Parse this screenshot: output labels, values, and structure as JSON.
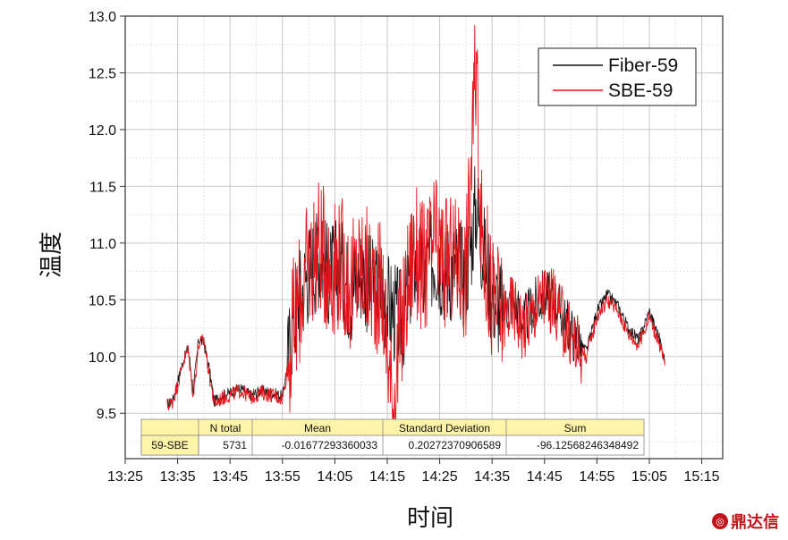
{
  "chart_data": {
    "type": "line",
    "xlabel": "时间",
    "ylabel": "温度",
    "x_ticks": [
      "13:25",
      "13:35",
      "13:45",
      "13:55",
      "14:05",
      "14:15",
      "14:25",
      "14:35",
      "14:45",
      "14:55",
      "15:05",
      "15:15"
    ],
    "xlim": [
      "13:25",
      "15:19"
    ],
    "ylim": [
      9.1,
      13.0
    ],
    "y_ticks": [
      "9.5",
      "10.0",
      "10.5",
      "11.0",
      "11.5",
      "12.0",
      "12.5",
      "13.0"
    ],
    "grid": true,
    "legend_position": "top-right",
    "series": [
      {
        "name": "Fiber-59",
        "color": "#111111",
        "points": [
          [
            "13:33",
            9.58
          ],
          [
            "13:34",
            9.6
          ],
          [
            "13:35",
            9.78
          ],
          [
            "13:36",
            9.95
          ],
          [
            "13:37",
            10.08
          ],
          [
            "13:38",
            9.7
          ],
          [
            "13:39",
            10.15
          ],
          [
            "13:40",
            10.12
          ],
          [
            "13:41",
            9.9
          ],
          [
            "13:42",
            9.6
          ],
          [
            "13:43",
            9.65
          ],
          [
            "13:45",
            9.68
          ],
          [
            "13:47",
            9.72
          ],
          [
            "13:49",
            9.66
          ],
          [
            "13:51",
            9.7
          ],
          [
            "13:53",
            9.68
          ],
          [
            "13:55",
            9.65
          ],
          [
            "13:56",
            9.95
          ],
          [
            "13:57",
            10.3
          ],
          [
            "13:58",
            10.5
          ],
          [
            "14:00",
            10.75
          ],
          [
            "14:02",
            10.9
          ],
          [
            "14:04",
            10.7
          ],
          [
            "14:06",
            10.8
          ],
          [
            "14:08",
            10.55
          ],
          [
            "14:10",
            10.75
          ],
          [
            "14:12",
            10.6
          ],
          [
            "14:14",
            10.55
          ],
          [
            "14:16",
            10.4
          ],
          [
            "14:18",
            10.3
          ],
          [
            "14:20",
            10.85
          ],
          [
            "14:22",
            10.7
          ],
          [
            "14:24",
            10.9
          ],
          [
            "14:26",
            10.75
          ],
          [
            "14:28",
            10.8
          ],
          [
            "14:30",
            10.7
          ],
          [
            "14:32",
            11.35
          ],
          [
            "14:33",
            11.0
          ],
          [
            "14:35",
            10.55
          ],
          [
            "14:37",
            10.4
          ],
          [
            "14:39",
            10.5
          ],
          [
            "14:41",
            10.3
          ],
          [
            "14:43",
            10.45
          ],
          [
            "14:45",
            10.55
          ],
          [
            "14:47",
            10.5
          ],
          [
            "14:49",
            10.3
          ],
          [
            "14:51",
            10.15
          ],
          [
            "14:53",
            10.05
          ],
          [
            "14:55",
            10.4
          ],
          [
            "14:57",
            10.55
          ],
          [
            "14:59",
            10.45
          ],
          [
            "15:01",
            10.25
          ],
          [
            "15:03",
            10.15
          ],
          [
            "15:05",
            10.4
          ],
          [
            "15:07",
            10.15
          ],
          [
            "15:08",
            9.95
          ]
        ]
      },
      {
        "name": "SBE-59",
        "color": "#e8141b",
        "points": [
          [
            "13:33",
            9.57
          ],
          [
            "13:34",
            9.6
          ],
          [
            "13:35",
            9.75
          ],
          [
            "13:36",
            9.95
          ],
          [
            "13:37",
            10.05
          ],
          [
            "13:38",
            9.65
          ],
          [
            "13:39",
            10.1
          ],
          [
            "13:40",
            10.15
          ],
          [
            "13:41",
            9.85
          ],
          [
            "13:42",
            9.58
          ],
          [
            "13:43",
            9.62
          ],
          [
            "13:45",
            9.66
          ],
          [
            "13:47",
            9.7
          ],
          [
            "13:49",
            9.64
          ],
          [
            "13:51",
            9.68
          ],
          [
            "13:53",
            9.66
          ],
          [
            "13:55",
            9.63
          ],
          [
            "13:56",
            9.9
          ],
          [
            "13:57",
            10.25
          ],
          [
            "13:58",
            10.45
          ],
          [
            "14:00",
            10.8
          ],
          [
            "14:02",
            11.0
          ],
          [
            "14:04",
            10.75
          ],
          [
            "14:06",
            10.85
          ],
          [
            "14:08",
            10.6
          ],
          [
            "14:10",
            10.8
          ],
          [
            "14:12",
            10.65
          ],
          [
            "14:14",
            10.6
          ],
          [
            "14:16",
            9.55
          ],
          [
            "14:18",
            10.35
          ],
          [
            "14:20",
            10.95
          ],
          [
            "14:22",
            10.75
          ],
          [
            "14:24",
            11.0
          ],
          [
            "14:26",
            10.8
          ],
          [
            "14:28",
            10.85
          ],
          [
            "14:30",
            10.75
          ],
          [
            "14:32",
            12.6
          ],
          [
            "14:33",
            11.05
          ],
          [
            "14:35",
            10.5
          ],
          [
            "14:37",
            10.35
          ],
          [
            "14:39",
            10.45
          ],
          [
            "14:41",
            10.25
          ],
          [
            "14:43",
            10.4
          ],
          [
            "14:45",
            10.55
          ],
          [
            "14:47",
            10.45
          ],
          [
            "14:49",
            10.25
          ],
          [
            "14:51",
            10.1
          ],
          [
            "14:53",
            10.0
          ],
          [
            "14:55",
            10.35
          ],
          [
            "14:57",
            10.5
          ],
          [
            "14:59",
            10.4
          ],
          [
            "15:01",
            10.2
          ],
          [
            "15:03",
            10.1
          ],
          [
            "15:05",
            10.35
          ],
          [
            "15:07",
            10.1
          ],
          [
            "15:08",
            9.92
          ]
        ]
      }
    ],
    "stats_table": {
      "headers": [
        "",
        "N total",
        "Mean",
        "Standard Deviation",
        "Sum"
      ],
      "rows": [
        [
          "59-SBE",
          "5731",
          "-0.01677293360033",
          "0.20272370906589",
          "-96.12568246348492"
        ]
      ]
    }
  },
  "watermark": {
    "icon": "chat-bubble-icon",
    "text": "鼎达信"
  }
}
